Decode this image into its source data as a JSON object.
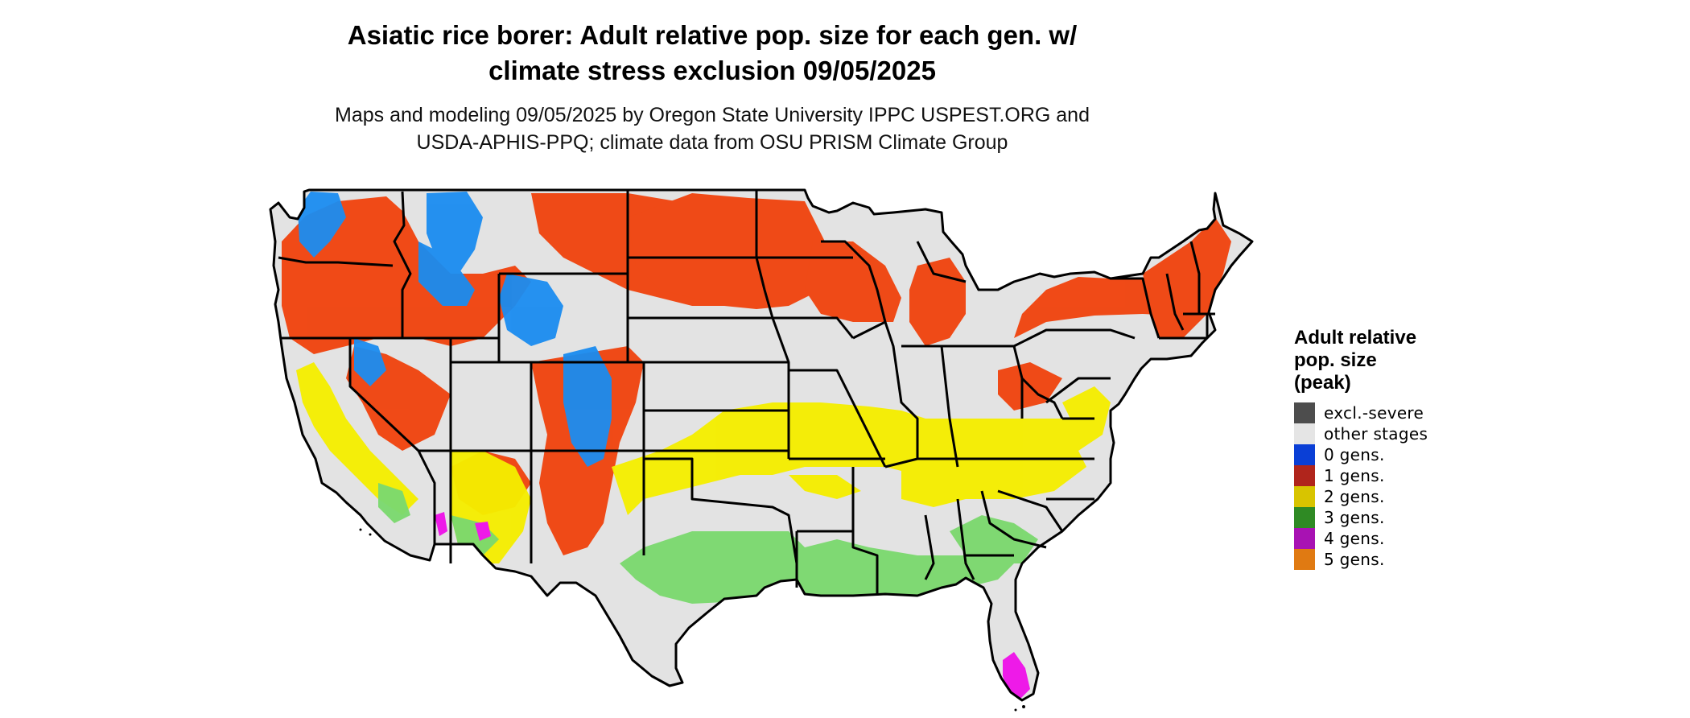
{
  "title": {
    "line1": "Asiatic rice borer: Adult relative pop. size for each gen. w/",
    "line2": "climate stress exclusion 09/05/2025"
  },
  "subtitle": {
    "line1": "Maps and modeling 09/05/2025 by Oregon State University IPPC USPEST.ORG and",
    "line2": "USDA-APHIS-PPQ; climate data from OSU PRISM Climate Group"
  },
  "legend": {
    "title_line1": "Adult relative",
    "title_line2": "pop. size",
    "title_line3": "(peak)",
    "items": [
      {
        "label": "excl.-severe",
        "color": "#4d4d4d"
      },
      {
        "label": "other stages",
        "color": "#e5e5e5"
      },
      {
        "label": "0 gens.",
        "color": "#0a3fd6"
      },
      {
        "label": "1 gens.",
        "color": "#b0251c"
      },
      {
        "label": "2 gens.",
        "color": "#d8c400"
      },
      {
        "label": "3 gens.",
        "color": "#2f8a24"
      },
      {
        "label": "4 gens.",
        "color": "#a812b3"
      },
      {
        "label": "5 gens.",
        "color": "#e07a12"
      }
    ]
  },
  "map_colors": {
    "base": "#e3e3e3",
    "one_gen": "#f0440f",
    "zero_gen": "#1a8cf0",
    "two_gen": "#f5ee00",
    "three_gen": "#7bd86e",
    "four_gen": "#ee1ae8",
    "border": "#000000"
  }
}
